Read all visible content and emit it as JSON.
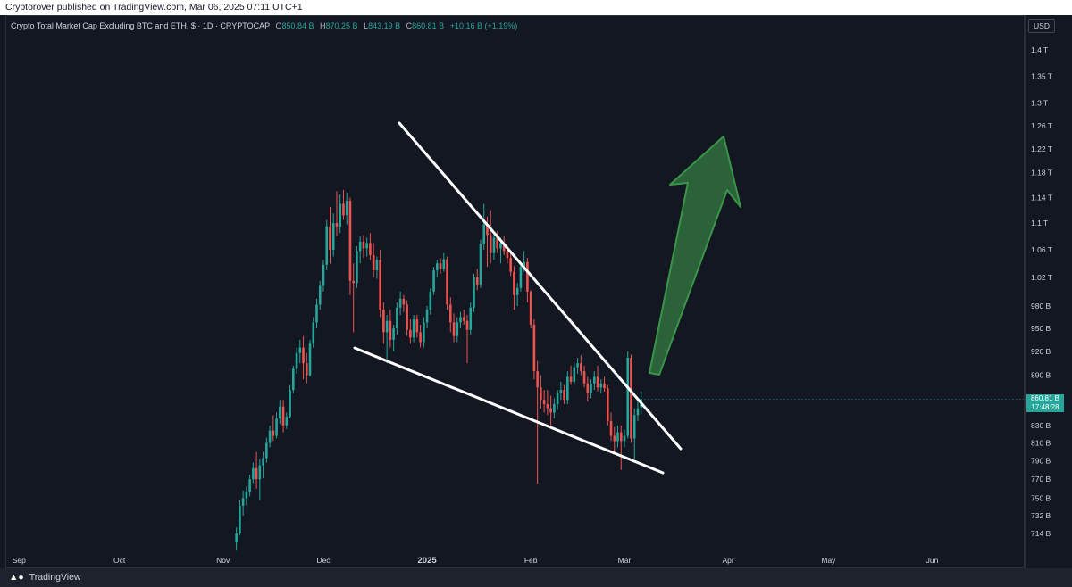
{
  "header": {
    "published": "Cryptorover published on TradingView.com, Mar 06, 2025 07:11 UTC+1"
  },
  "legend": {
    "title": "Crypto Total Market Cap Excluding BTC and ETH, $ · 1D · CRYPTOCAP",
    "o_label": "O",
    "o_value": "850.84 B",
    "h_label": "H",
    "h_value": "870.25 B",
    "l_label": "L",
    "l_value": "843.19 B",
    "c_label": "C",
    "c_value": "860.81 B",
    "change": "+10.16 B (+1.19%)"
  },
  "currency": "USD",
  "price_tag": {
    "price": "860.81 B",
    "countdown": "17:48:28"
  },
  "footer": {
    "brand": "TradingView"
  },
  "colors": {
    "background": "#131722",
    "up": "#26a69a",
    "down": "#ef5350",
    "arrow_fill": "#2e6b3d",
    "arrow_stroke": "#3fa34d",
    "trendline": "#ffffff"
  },
  "chart_data": {
    "type": "candlestick",
    "title": "Crypto Total Market Cap Excluding BTC and ETH, $ · 1D · CRYPTOCAP",
    "x_tick_labels": [
      "Sep",
      "Oct",
      "Nov",
      "Dec",
      "2025",
      "Feb",
      "Mar",
      "Apr",
      "May",
      "Jun"
    ],
    "x_tick_dates": [
      "2024-09-01",
      "2024-10-01",
      "2024-11-01",
      "2024-12-01",
      "2025-01-01",
      "2025-02-01",
      "2025-03-01",
      "2025-04-01",
      "2025-05-01",
      "2025-06-01"
    ],
    "y_tick_labels": [
      "1.4 T",
      "1.35 T",
      "1.3 T",
      "1.26 T",
      "1.22 T",
      "1.18 T",
      "1.14 T",
      "1.1 T",
      "1.06 T",
      "1.02 T",
      "980 B",
      "950 B",
      "920 B",
      "890 B",
      "860 B",
      "830 B",
      "810 B",
      "790 B",
      "770 B",
      "750 B",
      "732 B",
      "714 B"
    ],
    "y_tick_values": [
      1400,
      1350,
      1300,
      1260,
      1220,
      1180,
      1140,
      1100,
      1060,
      1020,
      980,
      950,
      920,
      890,
      860,
      830,
      810,
      790,
      770,
      750,
      732,
      714
    ],
    "y_units": "B",
    "y_scale": "log",
    "last_price": 860.81,
    "candles": [
      [
        "2024-11-05",
        705,
        720,
        698,
        714
      ],
      [
        "2024-11-06",
        714,
        748,
        712,
        742
      ],
      [
        "2024-11-07",
        742,
        758,
        732,
        750
      ],
      [
        "2024-11-08",
        750,
        762,
        743,
        757
      ],
      [
        "2024-11-09",
        757,
        775,
        752,
        770
      ],
      [
        "2024-11-10",
        770,
        788,
        766,
        782
      ],
      [
        "2024-11-11",
        782,
        800,
        760,
        770
      ],
      [
        "2024-11-12",
        770,
        792,
        748,
        785
      ],
      [
        "2024-11-13",
        785,
        800,
        771,
        793
      ],
      [
        "2024-11-14",
        793,
        816,
        788,
        810
      ],
      [
        "2024-11-15",
        810,
        830,
        805,
        824
      ],
      [
        "2024-11-16",
        824,
        842,
        812,
        818
      ],
      [
        "2024-11-17",
        818,
        845,
        815,
        838
      ],
      [
        "2024-11-18",
        838,
        860,
        832,
        852
      ],
      [
        "2024-11-19",
        852,
        860,
        822,
        830
      ],
      [
        "2024-11-20",
        830,
        845,
        826,
        840
      ],
      [
        "2024-11-21",
        840,
        878,
        838,
        872
      ],
      [
        "2024-11-22",
        872,
        902,
        868,
        898
      ],
      [
        "2024-11-23",
        898,
        925,
        892,
        918
      ],
      [
        "2024-11-24",
        918,
        935,
        905,
        925
      ],
      [
        "2024-11-25",
        925,
        940,
        885,
        905
      ],
      [
        "2024-11-26",
        905,
        918,
        880,
        890
      ],
      [
        "2024-11-27",
        890,
        935,
        888,
        930
      ],
      [
        "2024-11-28",
        930,
        965,
        925,
        958
      ],
      [
        "2024-11-29",
        958,
        990,
        950,
        982
      ],
      [
        "2024-11-30",
        982,
        1015,
        975,
        1008
      ],
      [
        "2024-12-01",
        1008,
        1045,
        1000,
        1038
      ],
      [
        "2024-12-02",
        1038,
        1105,
        1030,
        1095
      ],
      [
        "2024-12-03",
        1095,
        1125,
        1040,
        1060
      ],
      [
        "2024-12-04",
        1060,
        1115,
        1050,
        1100
      ],
      [
        "2024-12-05",
        1100,
        1150,
        1080,
        1095
      ],
      [
        "2024-12-06",
        1095,
        1145,
        1085,
        1130
      ],
      [
        "2024-12-07",
        1130,
        1152,
        1105,
        1112
      ],
      [
        "2024-12-08",
        1112,
        1148,
        1098,
        1135
      ],
      [
        "2024-12-09",
        1135,
        1140,
        995,
        1015
      ],
      [
        "2024-12-10",
        1015,
        1040,
        945,
        1012
      ],
      [
        "2024-12-11",
        1012,
        1065,
        1005,
        1058
      ],
      [
        "2024-12-12",
        1058,
        1080,
        1040,
        1072
      ],
      [
        "2024-12-13",
        1072,
        1082,
        1048,
        1062
      ],
      [
        "2024-12-14",
        1062,
        1078,
        1050,
        1070
      ],
      [
        "2024-12-15",
        1070,
        1085,
        1045,
        1052
      ],
      [
        "2024-12-16",
        1052,
        1070,
        1020,
        1030
      ],
      [
        "2024-12-17",
        1030,
        1050,
        1018,
        1045
      ],
      [
        "2024-12-18",
        1045,
        1060,
        965,
        975
      ],
      [
        "2024-12-19",
        975,
        985,
        930,
        945
      ],
      [
        "2024-12-20",
        945,
        968,
        905,
        960
      ],
      [
        "2024-12-21",
        960,
        975,
        925,
        935
      ],
      [
        "2024-12-22",
        935,
        955,
        920,
        950
      ],
      [
        "2024-12-23",
        950,
        985,
        942,
        978
      ],
      [
        "2024-12-24",
        978,
        1000,
        968,
        990
      ],
      [
        "2024-12-25",
        990,
        995,
        972,
        982
      ],
      [
        "2024-12-26",
        982,
        988,
        940,
        948
      ],
      [
        "2024-12-27",
        948,
        962,
        930,
        938
      ],
      [
        "2024-12-28",
        938,
        968,
        932,
        962
      ],
      [
        "2024-12-29",
        962,
        968,
        938,
        945
      ],
      [
        "2024-12-30",
        945,
        955,
        925,
        932
      ],
      [
        "2024-12-31",
        932,
        965,
        925,
        958
      ],
      [
        "2025-01-01",
        958,
        980,
        950,
        975
      ],
      [
        "2025-01-02",
        975,
        1005,
        968,
        1000
      ],
      [
        "2025-01-03",
        1000,
        1035,
        995,
        1030
      ],
      [
        "2025-01-04",
        1030,
        1045,
        1020,
        1040
      ],
      [
        "2025-01-05",
        1040,
        1048,
        1025,
        1032
      ],
      [
        "2025-01-06",
        1032,
        1055,
        1028,
        1046
      ],
      [
        "2025-01-07",
        1046,
        1050,
        975,
        982
      ],
      [
        "2025-01-08",
        982,
        992,
        945,
        958
      ],
      [
        "2025-01-09",
        958,
        970,
        932,
        940
      ],
      [
        "2025-01-10",
        940,
        965,
        932,
        958
      ],
      [
        "2025-01-11",
        958,
        972,
        950,
        965
      ],
      [
        "2025-01-12",
        965,
        975,
        955,
        960
      ],
      [
        "2025-01-13",
        960,
        968,
        905,
        948
      ],
      [
        "2025-01-14",
        948,
        985,
        942,
        978
      ],
      [
        "2025-01-15",
        978,
        1025,
        972,
        1020
      ],
      [
        "2025-01-16",
        1020,
        1032,
        1002,
        1010
      ],
      [
        "2025-01-17",
        1010,
        1075,
        1005,
        1068
      ],
      [
        "2025-01-18",
        1068,
        1130,
        1060,
        1098
      ],
      [
        "2025-01-19",
        1098,
        1110,
        1035,
        1082
      ],
      [
        "2025-01-20",
        1082,
        1120,
        1040,
        1055
      ],
      [
        "2025-01-21",
        1055,
        1085,
        1045,
        1078
      ],
      [
        "2025-01-22",
        1078,
        1088,
        1055,
        1062
      ],
      [
        "2025-01-23",
        1062,
        1078,
        1040,
        1070
      ],
      [
        "2025-01-24",
        1070,
        1080,
        1052,
        1058
      ],
      [
        "2025-01-25",
        1058,
        1066,
        1040,
        1048
      ],
      [
        "2025-01-26",
        1048,
        1058,
        1022,
        1028
      ],
      [
        "2025-01-27",
        1028,
        1036,
        975,
        995
      ],
      [
        "2025-01-28",
        995,
        1012,
        980,
        1005
      ],
      [
        "2025-01-29",
        1005,
        1040,
        1000,
        1035
      ],
      [
        "2025-01-30",
        1035,
        1058,
        1028,
        1042
      ],
      [
        "2025-01-31",
        1042,
        1048,
        985,
        1000
      ],
      [
        "2025-02-01",
        1000,
        1002,
        950,
        955
      ],
      [
        "2025-02-02",
        955,
        962,
        885,
        895
      ],
      [
        "2025-02-03",
        895,
        908,
        765,
        875
      ],
      [
        "2025-02-04",
        875,
        890,
        850,
        860
      ],
      [
        "2025-02-05",
        860,
        872,
        845,
        855
      ],
      [
        "2025-02-06",
        855,
        872,
        842,
        850
      ],
      [
        "2025-02-07",
        850,
        865,
        830,
        845
      ],
      [
        "2025-02-08",
        845,
        862,
        838,
        855
      ],
      [
        "2025-02-09",
        855,
        872,
        848,
        868
      ],
      [
        "2025-02-10",
        868,
        882,
        860,
        872
      ],
      [
        "2025-02-11",
        872,
        878,
        855,
        860
      ],
      [
        "2025-02-12",
        860,
        895,
        855,
        888
      ],
      [
        "2025-02-13",
        888,
        902,
        878,
        882
      ],
      [
        "2025-02-14",
        882,
        905,
        878,
        900
      ],
      [
        "2025-02-15",
        900,
        912,
        892,
        905
      ],
      [
        "2025-02-16",
        905,
        915,
        890,
        895
      ],
      [
        "2025-02-17",
        895,
        902,
        875,
        880
      ],
      [
        "2025-02-18",
        880,
        888,
        858,
        868
      ],
      [
        "2025-02-19",
        868,
        885,
        862,
        880
      ],
      [
        "2025-02-20",
        880,
        895,
        872,
        888
      ],
      [
        "2025-02-21",
        888,
        902,
        870,
        875
      ],
      [
        "2025-02-22",
        875,
        885,
        868,
        880
      ],
      [
        "2025-02-23",
        880,
        888,
        870,
        874
      ],
      [
        "2025-02-24",
        874,
        878,
        830,
        835
      ],
      [
        "2025-02-25",
        835,
        845,
        812,
        818
      ],
      [
        "2025-02-26",
        818,
        828,
        798,
        812
      ],
      [
        "2025-02-27",
        812,
        830,
        805,
        822
      ],
      [
        "2025-02-28",
        822,
        830,
        780,
        812
      ],
      [
        "2025-03-01",
        812,
        825,
        805,
        818
      ],
      [
        "2025-03-02",
        818,
        920,
        815,
        912
      ],
      [
        "2025-03-03",
        912,
        916,
        810,
        815
      ],
      [
        "2025-03-04",
        815,
        850,
        792,
        842
      ],
      [
        "2025-03-05",
        842,
        858,
        835,
        850
      ],
      [
        "2025-03-06",
        850.84,
        870.25,
        843.19,
        860.81
      ]
    ],
    "grid": false,
    "legend": "top-left"
  }
}
